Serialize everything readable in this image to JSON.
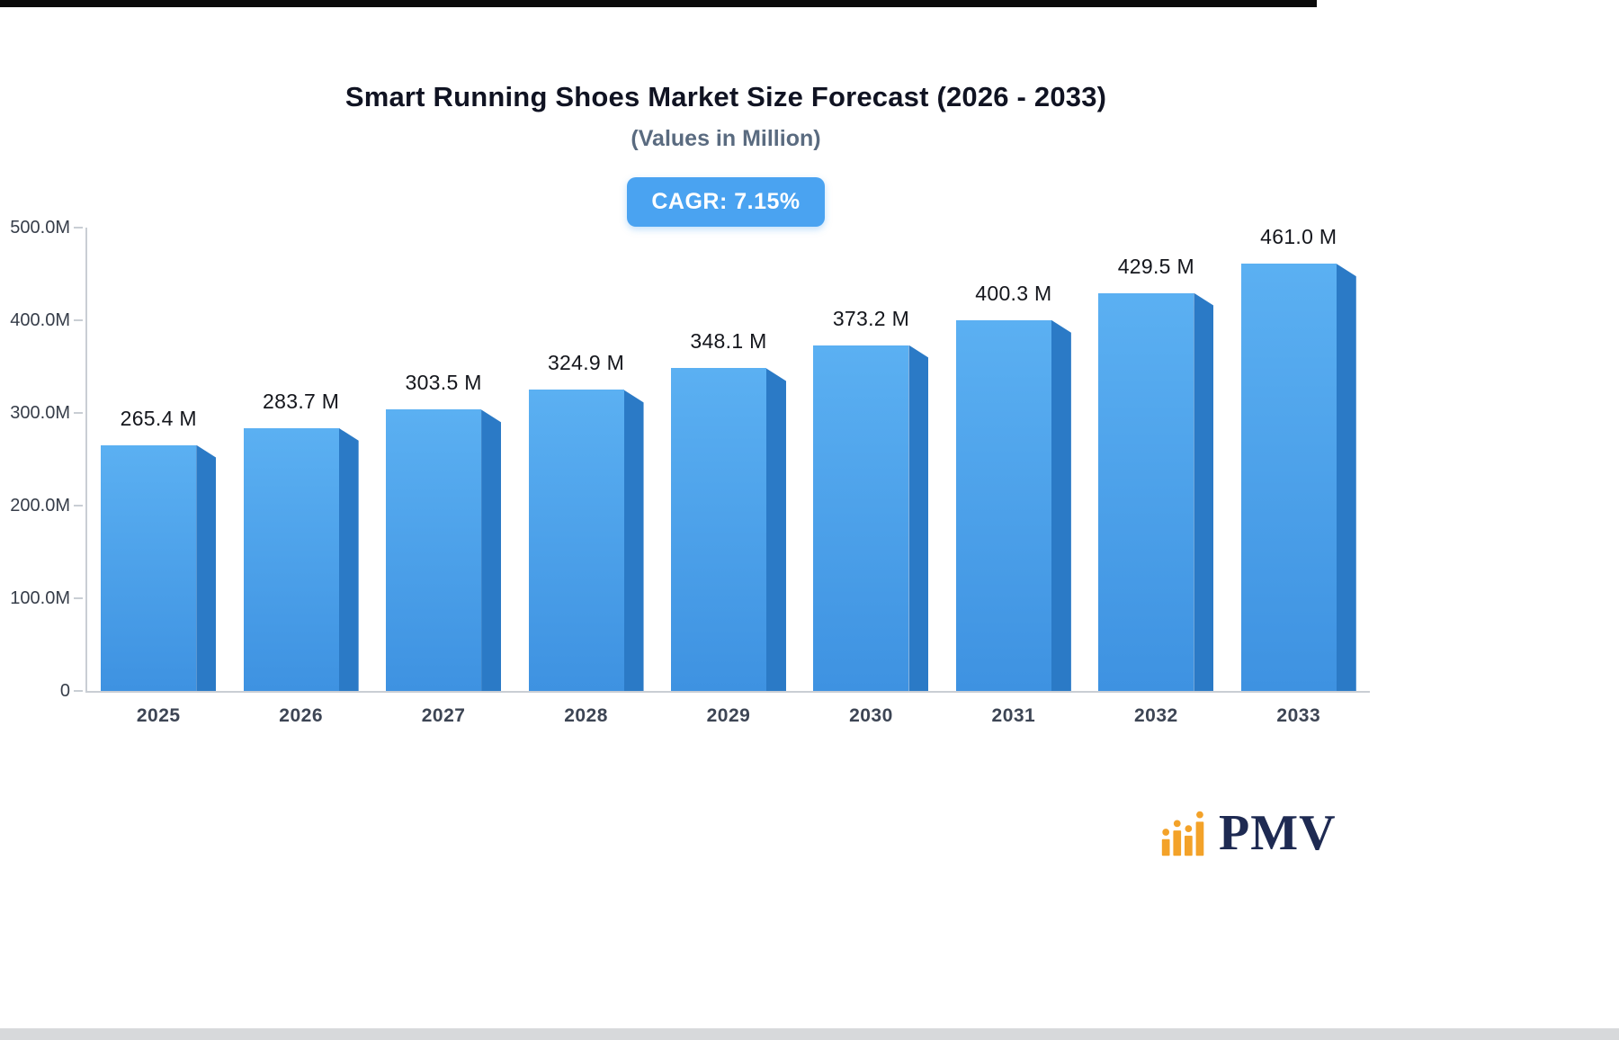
{
  "page": {
    "top_strip_color": "#0b0b0b",
    "bottom_strip_color": "#d7d9db"
  },
  "brand": {
    "name": "PMV",
    "icon": "pmv-bar-chart-logo-icon",
    "icon_color": "#f3a229",
    "text_color": "#1e2a52"
  },
  "chart_data": {
    "type": "bar",
    "title": "Smart Running Shoes Market Size Forecast (2026 - 2033)",
    "subtitle": "(Values in Million)",
    "annotation": "CAGR: 7.15%",
    "categories": [
      "2025",
      "2026",
      "2027",
      "2028",
      "2029",
      "2030",
      "2031",
      "2032",
      "2033"
    ],
    "values": [
      265.4,
      283.7,
      303.5,
      324.9,
      348.1,
      373.2,
      400.3,
      429.5,
      461.0
    ],
    "value_labels": [
      "265.4 M",
      "283.7 M",
      "303.5 M",
      "324.9 M",
      "348.1 M",
      "373.2 M",
      "400.3 M",
      "429.5 M",
      "461.0 M"
    ],
    "unit": "M",
    "xlabel": "",
    "ylabel": "",
    "ylim": [
      0,
      500
    ],
    "y_ticks": [
      "0",
      "100.0M",
      "200.0M",
      "300.0M",
      "400.0M",
      "500.0M"
    ],
    "grid": false,
    "legend": false,
    "annotation_bg_color": "#4aa3f1",
    "bar_color_top": "#5bb0f2",
    "bar_color_bottom": "#3e92e1",
    "bar_side_color": "#2b7ac6"
  }
}
